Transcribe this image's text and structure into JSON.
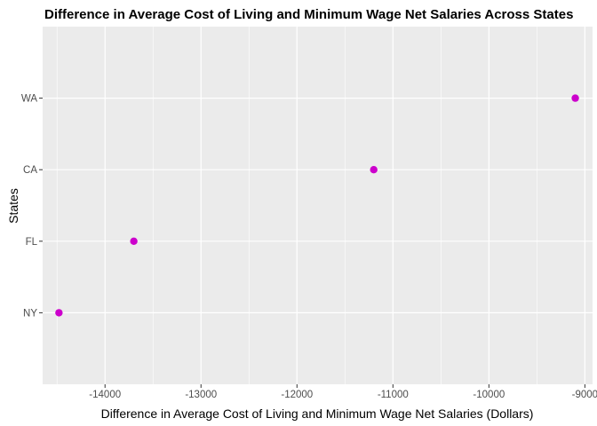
{
  "chart_data": {
    "type": "scatter",
    "title": "Difference in Average Cost of Living and Minimum Wage Net Salaries Across States",
    "xlabel": "Difference in Average Cost of Living and Minimum Wage Net Salaries (Dollars)",
    "ylabel": "States",
    "categories": [
      "NY",
      "FL",
      "CA",
      "WA"
    ],
    "values": [
      -14480,
      -13700,
      -11200,
      -9100
    ],
    "xlim": [
      -14650,
      -8920
    ],
    "xticks": [
      -14000,
      -13000,
      -12000,
      -11000,
      -10000,
      -9000
    ],
    "xtick_labels": [
      "-14000",
      "-13000",
      "-12000",
      "-11000",
      "-10000",
      "-9000"
    ],
    "grid": true,
    "colors": {
      "panel_background": "#ebebeb",
      "grid_major": "#ffffff",
      "point": "#cc00cc",
      "tick_text": "#4d4d4d"
    }
  }
}
